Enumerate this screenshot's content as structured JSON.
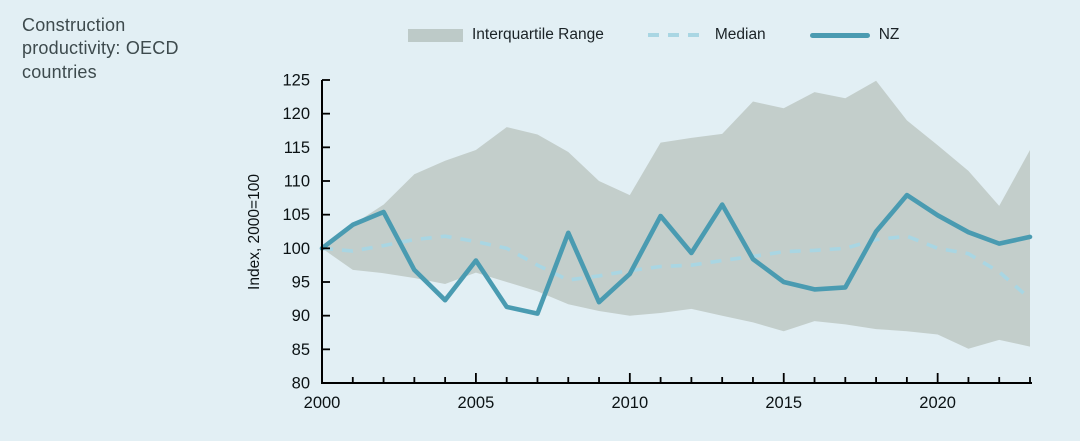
{
  "title": "Construction productivity: OECD countries",
  "legend": {
    "iqr": "Interquartile Range",
    "median": "Median",
    "nz": "NZ"
  },
  "colors": {
    "background": "#e2eff4",
    "band": "#c3cecb",
    "band_swatch": "#bdcac8",
    "nz_line": "#4a9bb1",
    "median_line": "#a9d6e3",
    "axis": "#000000",
    "tick_label": "#0b1214",
    "title_text": "#3d4a4d"
  },
  "chart_data": {
    "type": "line",
    "title": "Construction productivity: OECD countries",
    "xlabel": "",
    "ylabel": "Index, 2000=100",
    "xlim": [
      2000,
      2023
    ],
    "ylim": [
      80,
      125
    ],
    "yticks": [
      80,
      85,
      90,
      95,
      100,
      105,
      110,
      115,
      120,
      125
    ],
    "xticks_major": [
      2000,
      2005,
      2010,
      2015,
      2020
    ],
    "xticks_minor_step": 1,
    "grid": false,
    "legend_position": "top-center",
    "x": [
      2000,
      2001,
      2002,
      2003,
      2004,
      2005,
      2006,
      2007,
      2008,
      2009,
      2010,
      2011,
      2012,
      2013,
      2014,
      2015,
      2016,
      2017,
      2018,
      2019,
      2020,
      2021,
      2022,
      2023
    ],
    "series": [
      {
        "name": "Interquartile Range",
        "type": "band",
        "upper": [
          100,
          103.5,
          106.5,
          111.0,
          113.0,
          114.6,
          118.0,
          116.9,
          114.3,
          110.0,
          107.9,
          115.7,
          116.4,
          117.0,
          121.8,
          120.8,
          123.2,
          122.3,
          124.9,
          119.0,
          115.3,
          111.5,
          106.3,
          114.6
        ],
        "lower": [
          100,
          96.8,
          96.3,
          95.6,
          94.7,
          96.4,
          95.0,
          93.6,
          91.7,
          90.7,
          90.0,
          90.4,
          91.0,
          90.0,
          89.0,
          87.7,
          89.2,
          88.7,
          88.0,
          87.7,
          87.2,
          85.1,
          86.4,
          85.4
        ]
      },
      {
        "name": "Median",
        "type": "line",
        "style": "dashed",
        "values": [
          100,
          99.6,
          100.4,
          101.3,
          101.8,
          101.0,
          100.0,
          97.5,
          95.3,
          95.9,
          96.7,
          97.3,
          97.5,
          98.2,
          98.8,
          99.5,
          99.7,
          100.0,
          101.3,
          101.8,
          100.0,
          99.2,
          96.5,
          92.5
        ]
      },
      {
        "name": "NZ",
        "type": "line",
        "style": "solid",
        "values": [
          100,
          103.5,
          105.4,
          96.8,
          92.3,
          98.2,
          91.3,
          90.3,
          102.3,
          92.0,
          96.2,
          104.8,
          99.3,
          106.5,
          98.4,
          95.0,
          93.9,
          94.2,
          102.5,
          107.9,
          104.9,
          102.4,
          100.7,
          101.7
        ]
      }
    ]
  }
}
